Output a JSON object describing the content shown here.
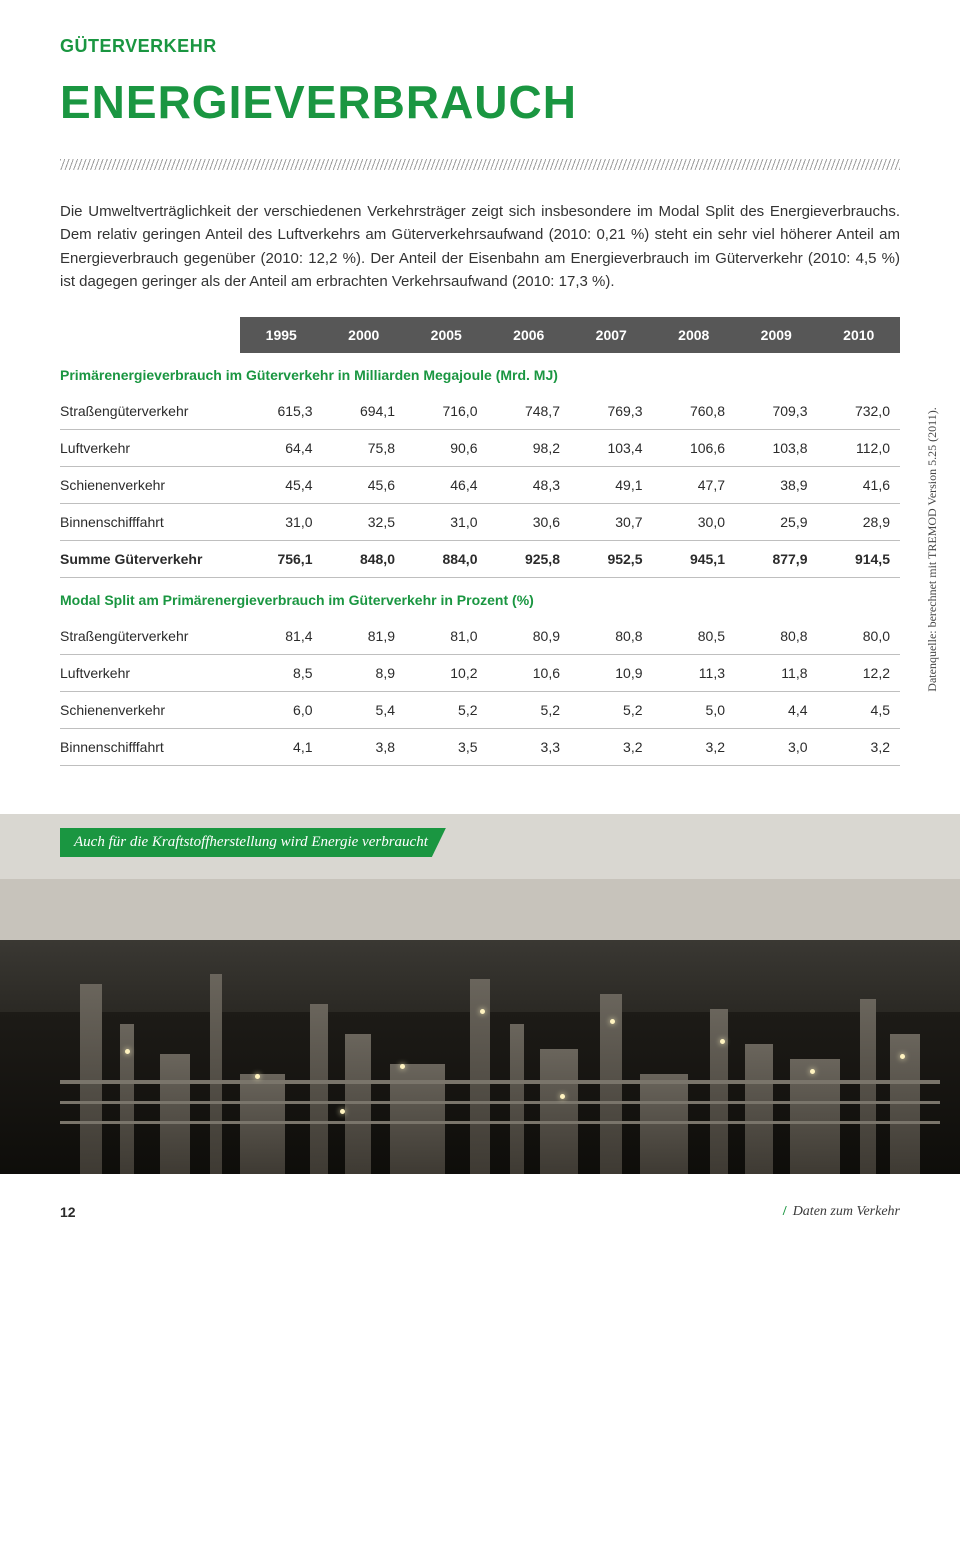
{
  "colors": {
    "accent_green": "#1a9641",
    "header_gray": "#575757",
    "text": "#2b2b2b",
    "row_border": "#bfbfbf",
    "hatch": "#9e9e9e",
    "background": "#ffffff"
  },
  "section_label": "GÜTERVERKEHR",
  "title": "ENERGIEVERBRAUCH",
  "intro": "Die Umweltverträglichkeit der verschiedenen Verkehrsträger zeigt sich insbesondere im Modal Split des Energieverbrauchs. Dem relativ geringen Anteil des Luftverkehrs am Güterverkehrsaufwand (2010: 0,21 %) steht ein sehr viel höherer Anteil am Energieverbrauch gegenüber (2010: 12,2 %). Der Anteil der Eisenbahn am Energieverbrauch im Güterverkehr (2010: 4,5 %) ist dagegen geringer als der Anteil am erbrachten Verkehrsaufwand (2010: 17,3 %).",
  "table": {
    "years": [
      "1995",
      "2000",
      "2005",
      "2006",
      "2007",
      "2008",
      "2009",
      "2010"
    ],
    "section1_title": "Primärenergieverbrauch im Güterverkehr in Milliarden Megajoule (Mrd. MJ)",
    "section1_rows": [
      {
        "label": "Straßengüterverkehr",
        "v": [
          "615,3",
          "694,1",
          "716,0",
          "748,7",
          "769,3",
          "760,8",
          "709,3",
          "732,0"
        ]
      },
      {
        "label": "Luftverkehr",
        "v": [
          "64,4",
          "75,8",
          "90,6",
          "98,2",
          "103,4",
          "106,6",
          "103,8",
          "112,0"
        ]
      },
      {
        "label": "Schienenverkehr",
        "v": [
          "45,4",
          "45,6",
          "46,4",
          "48,3",
          "49,1",
          "47,7",
          "38,9",
          "41,6"
        ]
      },
      {
        "label": "Binnenschifffahrt",
        "v": [
          "31,0",
          "32,5",
          "31,0",
          "30,6",
          "30,7",
          "30,0",
          "25,9",
          "28,9"
        ]
      },
      {
        "label": "Summe Güterverkehr",
        "v": [
          "756,1",
          "848,0",
          "884,0",
          "925,8",
          "952,5",
          "945,1",
          "877,9",
          "914,5"
        ],
        "bold": true
      }
    ],
    "section2_title": "Modal Split am Primärenergieverbrauch im Güterverkehr in Prozent (%)",
    "section2_rows": [
      {
        "label": "Straßengüterverkehr",
        "v": [
          "81,4",
          "81,9",
          "81,0",
          "80,9",
          "80,8",
          "80,5",
          "80,8",
          "80,0"
        ]
      },
      {
        "label": "Luftverkehr",
        "v": [
          "8,5",
          "8,9",
          "10,2",
          "10,6",
          "10,9",
          "11,3",
          "11,8",
          "12,2"
        ]
      },
      {
        "label": "Schienenverkehr",
        "v": [
          "6,0",
          "5,4",
          "5,2",
          "5,2",
          "5,2",
          "5,0",
          "4,4",
          "4,5"
        ]
      },
      {
        "label": "Binnenschifffahrt",
        "v": [
          "4,1",
          "3,8",
          "3,5",
          "3,3",
          "3,2",
          "3,2",
          "3,0",
          "3,2"
        ]
      }
    ]
  },
  "source": "Datenquelle: berechnet mit TREMOD Version 5.25 (2011).",
  "photo_caption": "Auch für die Kraftstoffherstellung wird Energie verbraucht",
  "footer": {
    "page_number": "12",
    "reference": "Daten zum Verkehr"
  }
}
